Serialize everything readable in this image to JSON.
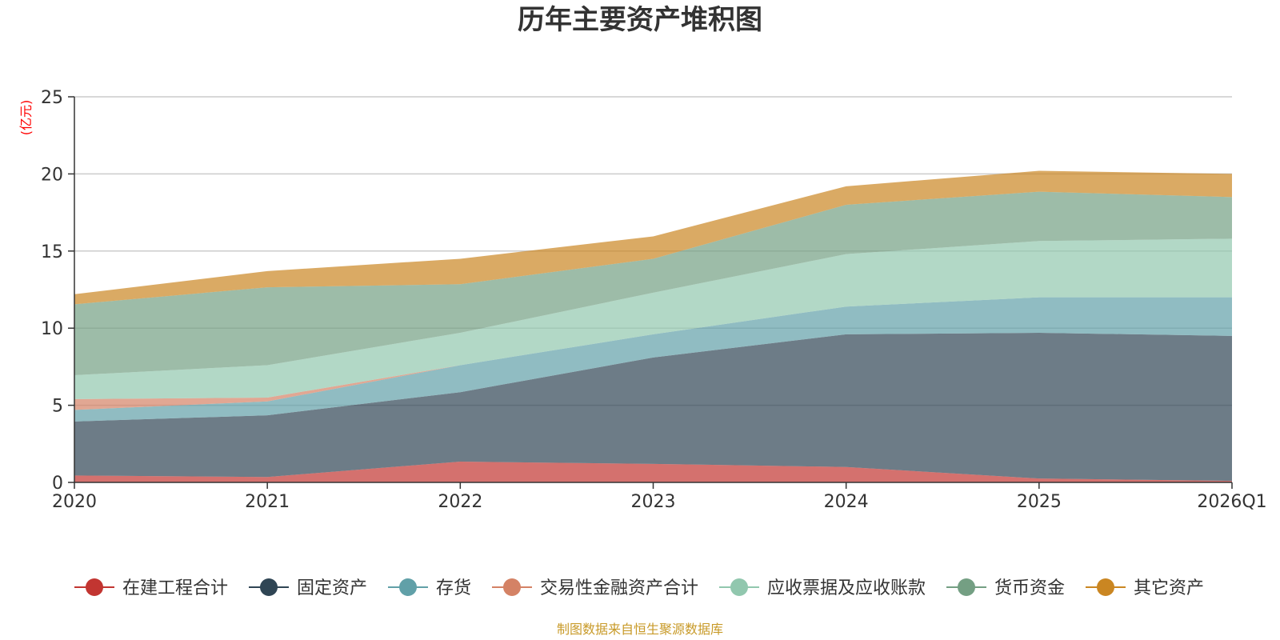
{
  "colors": {
    "axis": "#333333",
    "grid": "#cccccc",
    "unit_label": "#ff0000",
    "source": "#c89a28"
  },
  "chart_data": {
    "type": "area",
    "stacked": true,
    "title": "历年主要资产堆积图",
    "ylabel": "(亿元)",
    "ylim": [
      0,
      25
    ],
    "yticks": [
      0,
      5,
      10,
      15,
      20,
      25
    ],
    "categories": [
      "2020",
      "2021",
      "2022",
      "2023",
      "2024",
      "2025",
      "2026Q1"
    ],
    "legend_position": "bottom",
    "series": [
      {
        "name": "在建工程合计",
        "color": "#c23531",
        "values": [
          0.45,
          0.35,
          1.35,
          1.2,
          1.0,
          0.25,
          0.1
        ]
      },
      {
        "name": "固定资产",
        "color": "#2f4554",
        "values": [
          3.5,
          4.0,
          4.5,
          6.9,
          8.6,
          9.45,
          9.4
        ]
      },
      {
        "name": "存货",
        "color": "#61a0a8",
        "values": [
          0.75,
          0.9,
          1.75,
          1.5,
          1.8,
          2.3,
          2.5
        ]
      },
      {
        "name": "交易性金融资产合计",
        "color": "#d48265",
        "values": [
          0.7,
          0.25,
          0.0,
          0.0,
          0.0,
          0.0,
          0.0
        ]
      },
      {
        "name": "应收票据及应收账款",
        "color": "#91c7ae",
        "values": [
          1.55,
          2.1,
          2.1,
          2.7,
          3.4,
          3.65,
          3.8
        ]
      },
      {
        "name": "货币资金",
        "color": "#749f83",
        "values": [
          4.6,
          5.05,
          3.15,
          2.2,
          3.2,
          3.2,
          2.7
        ]
      },
      {
        "name": "其它资产",
        "color": "#ca8622",
        "values": [
          0.65,
          1.05,
          1.65,
          1.45,
          1.2,
          1.35,
          1.5
        ]
      }
    ],
    "source_note": "制图数据来自恒生聚源数据库"
  }
}
